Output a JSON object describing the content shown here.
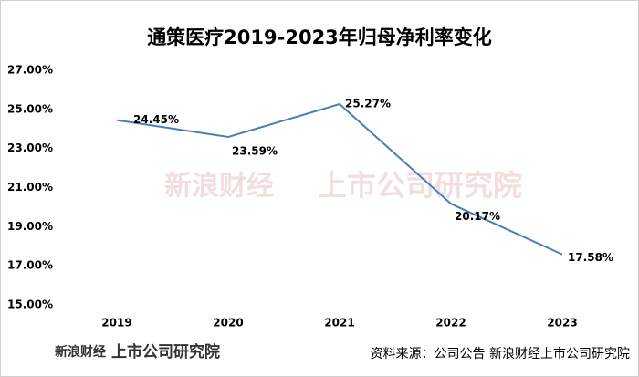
{
  "chart_data": {
    "type": "line",
    "title": "通策医疗2019-2023年归母净利率变化",
    "categories": [
      "2019",
      "2020",
      "2021",
      "2022",
      "2023"
    ],
    "series": [
      {
        "name": "归母净利率",
        "color": "#4a7ebb",
        "values": [
          24.45,
          23.59,
          25.27,
          20.17,
          17.58
        ],
        "value_labels": [
          "24.45%",
          "23.59%",
          "25.27%",
          "20.17%",
          "17.58%"
        ]
      }
    ],
    "ylim": [
      15,
      27
    ],
    "yticks": [
      {
        "value": 15,
        "label": "15.00%"
      },
      {
        "value": 17,
        "label": "17.00%"
      },
      {
        "value": 19,
        "label": "19.00%"
      },
      {
        "value": 21,
        "label": "21.00%"
      },
      {
        "value": 23,
        "label": "23.00%"
      },
      {
        "value": 25,
        "label": "25.00%"
      },
      {
        "value": 27,
        "label": "27.00%"
      }
    ],
    "grid": false
  },
  "footer": {
    "source": "资料来源：公司公告 新浪财经上市公司研究院",
    "logo": "新浪财经",
    "logo2": "上市公司研究院"
  }
}
